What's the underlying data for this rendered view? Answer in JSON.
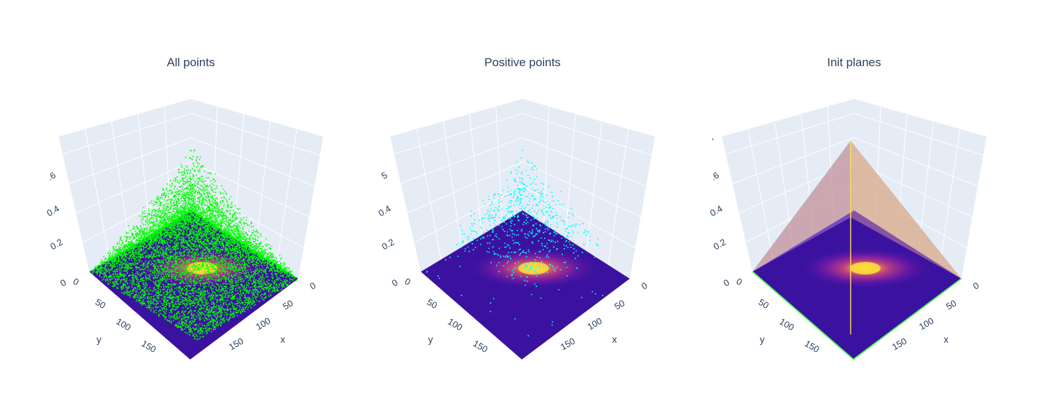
{
  "colors": {
    "pane": "#e5ecf6",
    "grid": "#ffffff",
    "text": "#2a3f5f",
    "floor_base": "#3b12a0",
    "scatter_all": "#00ff00",
    "scatter_positive": "#00ffff",
    "plane_edge": "#66ff66"
  },
  "chart_data": [
    {
      "type": "scatter3d",
      "title": "All points",
      "xlabel": "x",
      "ylabel": "y",
      "x_ticks": [
        "0",
        "50",
        "100",
        "150"
      ],
      "y_ticks": [
        "0",
        "50",
        "100",
        "150"
      ],
      "z_ticks": [
        ".6",
        "0.4",
        "0.2",
        "0"
      ],
      "xlim": [
        0,
        200
      ],
      "ylim": [
        0,
        200
      ],
      "zlim": [
        0,
        0.8
      ],
      "surface": "floor heatmap (plasma)",
      "point_color": "#00ff00",
      "shape": "pyramid-like cloud peaking near x=100, y=100"
    },
    {
      "type": "scatter3d",
      "title": "Positive points",
      "xlabel": "x",
      "ylabel": "y",
      "x_ticks": [
        "0",
        "50",
        "100",
        "150"
      ],
      "y_ticks": [
        "0",
        "50",
        "100",
        "150"
      ],
      "z_ticks": [
        "5",
        "0.4",
        "0.2",
        "0"
      ],
      "xlim": [
        0,
        200
      ],
      "ylim": [
        0,
        200
      ],
      "zlim": [
        0,
        0.7
      ],
      "surface": "floor heatmap (plasma)",
      "point_color": "#00ffff",
      "shape": "pyramid-like cloud peaking near x=100, y=100"
    },
    {
      "type": "surface3d",
      "title": "Init planes",
      "xlabel": "x",
      "ylabel": "y",
      "x_ticks": [
        "0",
        "50",
        "100",
        "150"
      ],
      "y_ticks": [
        "0",
        "50",
        "100",
        "150"
      ],
      "z_ticks": [
        "'",
        ".6",
        "0.4",
        "0.2",
        "0"
      ],
      "xlim": [
        0,
        200
      ],
      "ylim": [
        0,
        200
      ],
      "zlim": [
        0,
        0.8
      ],
      "surface": "floor heatmap (plasma) with four triangular planes meeting at apex",
      "shape": "pyramid of planes, apex near x=100, y=100"
    }
  ]
}
